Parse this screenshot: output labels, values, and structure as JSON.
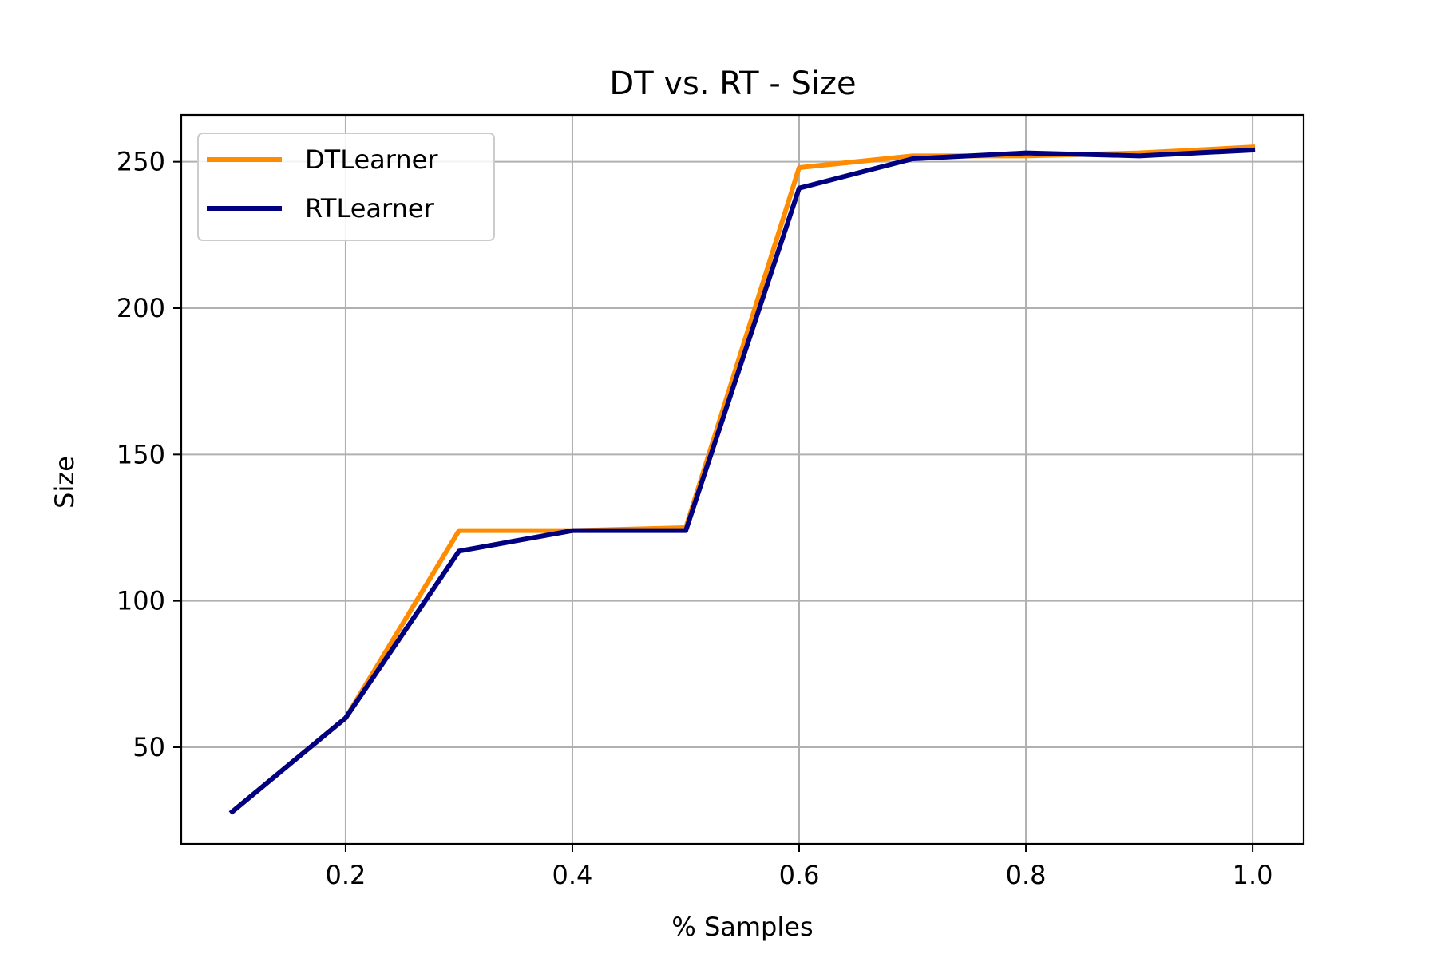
{
  "chart_data": {
    "type": "line",
    "title": "DT vs. RT - Size",
    "xlabel": "% Samples",
    "ylabel": "Size",
    "x": [
      0.1,
      0.2,
      0.3,
      0.4,
      0.5,
      0.6,
      0.7,
      0.8,
      0.9,
      1.0
    ],
    "xlim": [
      0.055,
      1.045
    ],
    "ylim": [
      17,
      266
    ],
    "xticks": [
      0.2,
      0.4,
      0.6,
      0.8,
      1.0
    ],
    "xtick_labels": [
      "0.2",
      "0.4",
      "0.6",
      "0.8",
      "1.0"
    ],
    "yticks": [
      50,
      100,
      150,
      200,
      250
    ],
    "ytick_labels": [
      "50",
      "100",
      "150",
      "200",
      "250"
    ],
    "grid": true,
    "legend_position": "upper-left",
    "series": [
      {
        "name": "DTLearner",
        "color": "#ff8c00",
        "values": [
          28,
          60,
          124,
          124,
          125,
          248,
          252,
          252,
          253,
          255
        ]
      },
      {
        "name": "RTLearner",
        "color": "#000080",
        "values": [
          28,
          60,
          117,
          124,
          124,
          241,
          251,
          253,
          252,
          254
        ]
      }
    ]
  }
}
